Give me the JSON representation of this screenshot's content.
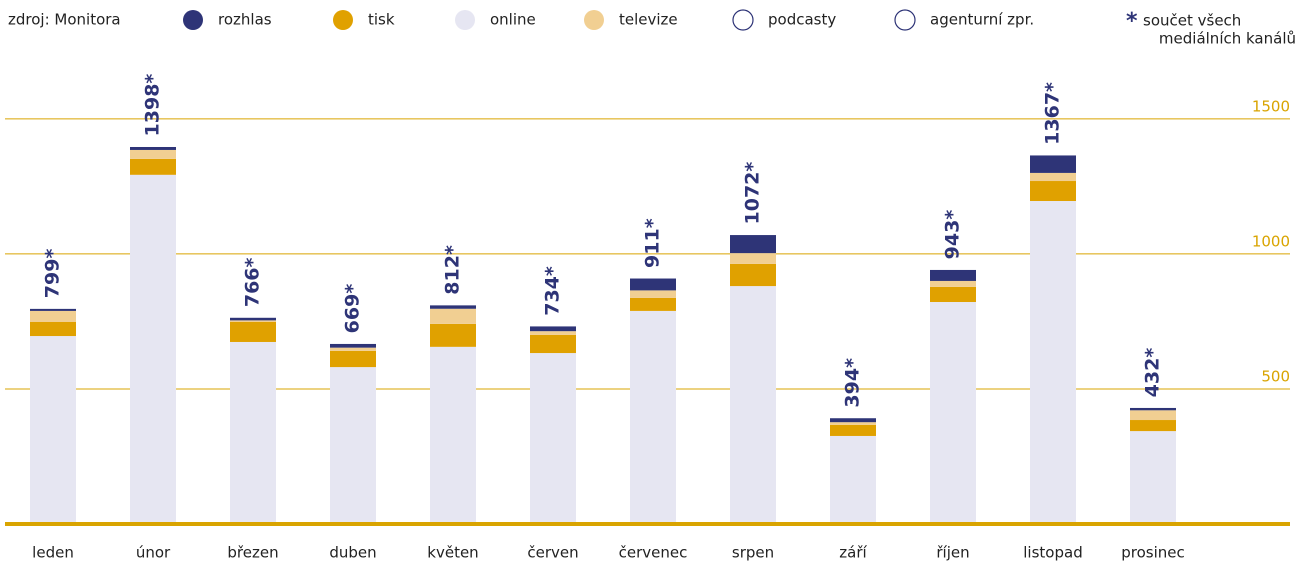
{
  "chart_data": {
    "type": "stacked_bar",
    "source": "zdroj: Monitora",
    "note_mark": "*",
    "note": [
      "součet všech",
      "mediálních kanálů"
    ],
    "categories": [
      "leden",
      "únor",
      "březen",
      "duben",
      "květen",
      "červen",
      "červenec",
      "srpen",
      "září",
      "říjen",
      "listopad",
      "prosinec"
    ],
    "series": [
      {
        "name": "online",
        "color": "#e6e6f2",
        "values": [
          696,
          1293,
          674,
          581,
          656,
          633,
          789,
          881,
          326,
          822,
          1196,
          344
        ]
      },
      {
        "name": "tisk",
        "color": "#e0a100",
        "values": [
          52,
          59,
          74,
          60,
          85,
          67,
          48,
          82,
          41,
          56,
          74,
          41
        ]
      },
      {
        "name": "televize",
        "color": "#f1cf92",
        "values": [
          41,
          33,
          6,
          12,
          56,
          14,
          28,
          40,
          10,
          22,
          30,
          36
        ]
      },
      {
        "name": "rozhlas",
        "color": "#2e3477",
        "values": [
          8,
          11,
          10,
          14,
          13,
          18,
          44,
          67,
          15,
          41,
          65,
          9
        ]
      },
      {
        "name": "podcasty",
        "color": "#ffffff",
        "values": [
          1,
          1,
          1,
          1,
          1,
          1,
          1,
          1,
          1,
          1,
          1,
          1
        ]
      },
      {
        "name": "agenturní zpr.",
        "color": "#ffffff",
        "values": [
          1,
          1,
          1,
          1,
          1,
          1,
          1,
          1,
          1,
          1,
          1,
          1
        ]
      }
    ],
    "legend_order": [
      3,
      1,
      0,
      2,
      4,
      5
    ],
    "totals": {
      "values": [
        799,
        1398,
        766,
        669,
        812,
        734,
        911,
        1072,
        394,
        943,
        1367,
        432
      ],
      "value_labels": [
        "799*",
        "1398*",
        "766*",
        "669*",
        "812*",
        "734*",
        "911*",
        "1072*",
        "394*",
        "943*",
        "1367*",
        "432*"
      ]
    },
    "ylim": [
      0,
      1570
    ],
    "yticks": [
      500,
      1000,
      1500
    ],
    "grid": true
  }
}
